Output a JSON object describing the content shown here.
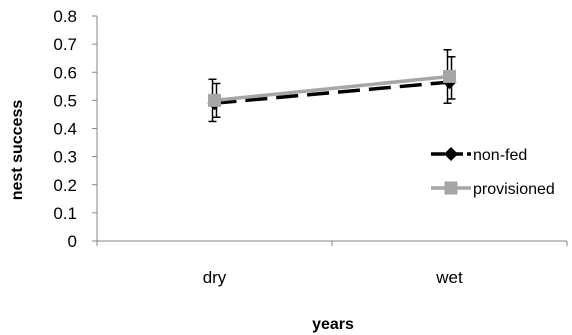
{
  "chart_data": {
    "type": "line",
    "title": "",
    "xlabel": "years",
    "ylabel": "nest success",
    "categories": [
      "dry",
      "wet"
    ],
    "ylim": [
      0,
      0.8
    ],
    "yticks": [
      0,
      0.1,
      0.2,
      0.3,
      0.4,
      0.5,
      0.6,
      0.7,
      0.8
    ],
    "ytick_labels": [
      "0",
      "0.1",
      "0.2",
      "0.3",
      "0.4",
      "0.5",
      "0.6",
      "0.7",
      "0.8"
    ],
    "grid": false,
    "legend": "right",
    "series": [
      {
        "name": "non-fed",
        "values": [
          0.49,
          0.565
        ],
        "err_low": [
          0.065,
          0.075
        ],
        "err_high": [
          0.085,
          0.115
        ],
        "color": "#000000",
        "dashed": true,
        "marker": "diamond"
      },
      {
        "name": "provisioned",
        "values": [
          0.5,
          0.585
        ],
        "err_low": [
          0.06,
          0.08
        ],
        "err_high": [
          0.06,
          0.07
        ],
        "color": "#a6a6a6",
        "dashed": false,
        "marker": "square"
      }
    ]
  }
}
